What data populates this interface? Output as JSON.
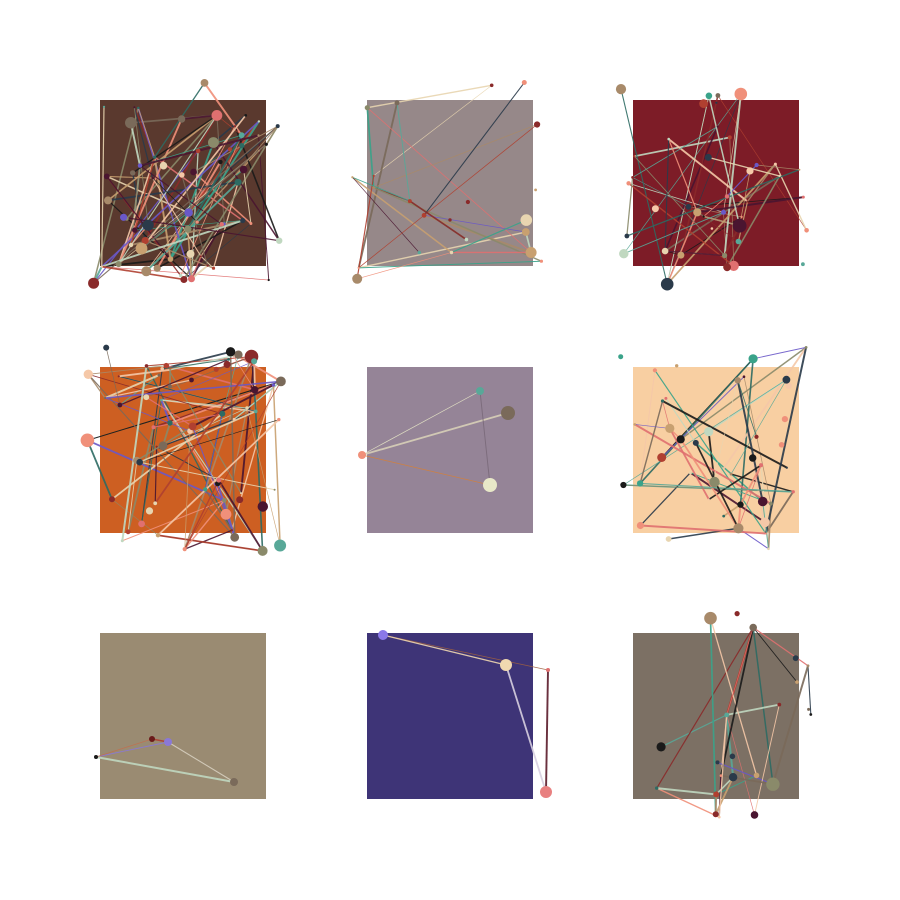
{
  "panels": [
    {
      "background": "#5a392e",
      "density": "high"
    },
    {
      "background": "#968889",
      "density": "low"
    },
    {
      "background": "#7d1c27",
      "density": "medium"
    },
    {
      "background": "#cd5f22",
      "density": "high"
    },
    {
      "background": "#958497",
      "density": "minimal"
    },
    {
      "background": "#f8cfa2",
      "density": "medium"
    },
    {
      "background": "#9a8b72",
      "density": "minimal"
    },
    {
      "background": "#3e3477",
      "density": "minimal"
    },
    {
      "background": "#7c7064",
      "density": "low"
    }
  ],
  "palette": [
    "#e8d5b0",
    "#f0907a",
    "#2d6b63",
    "#3aa38a",
    "#8a2a2a",
    "#4a1530",
    "#1a1a1a",
    "#a88a6a",
    "#6a58c8",
    "#c8a070",
    "#b04030",
    "#f5c8a8",
    "#8a8a6a",
    "#58a898",
    "#e07070",
    "#7a6a5a",
    "#c0d8c0",
    "#2a3a4a"
  ]
}
